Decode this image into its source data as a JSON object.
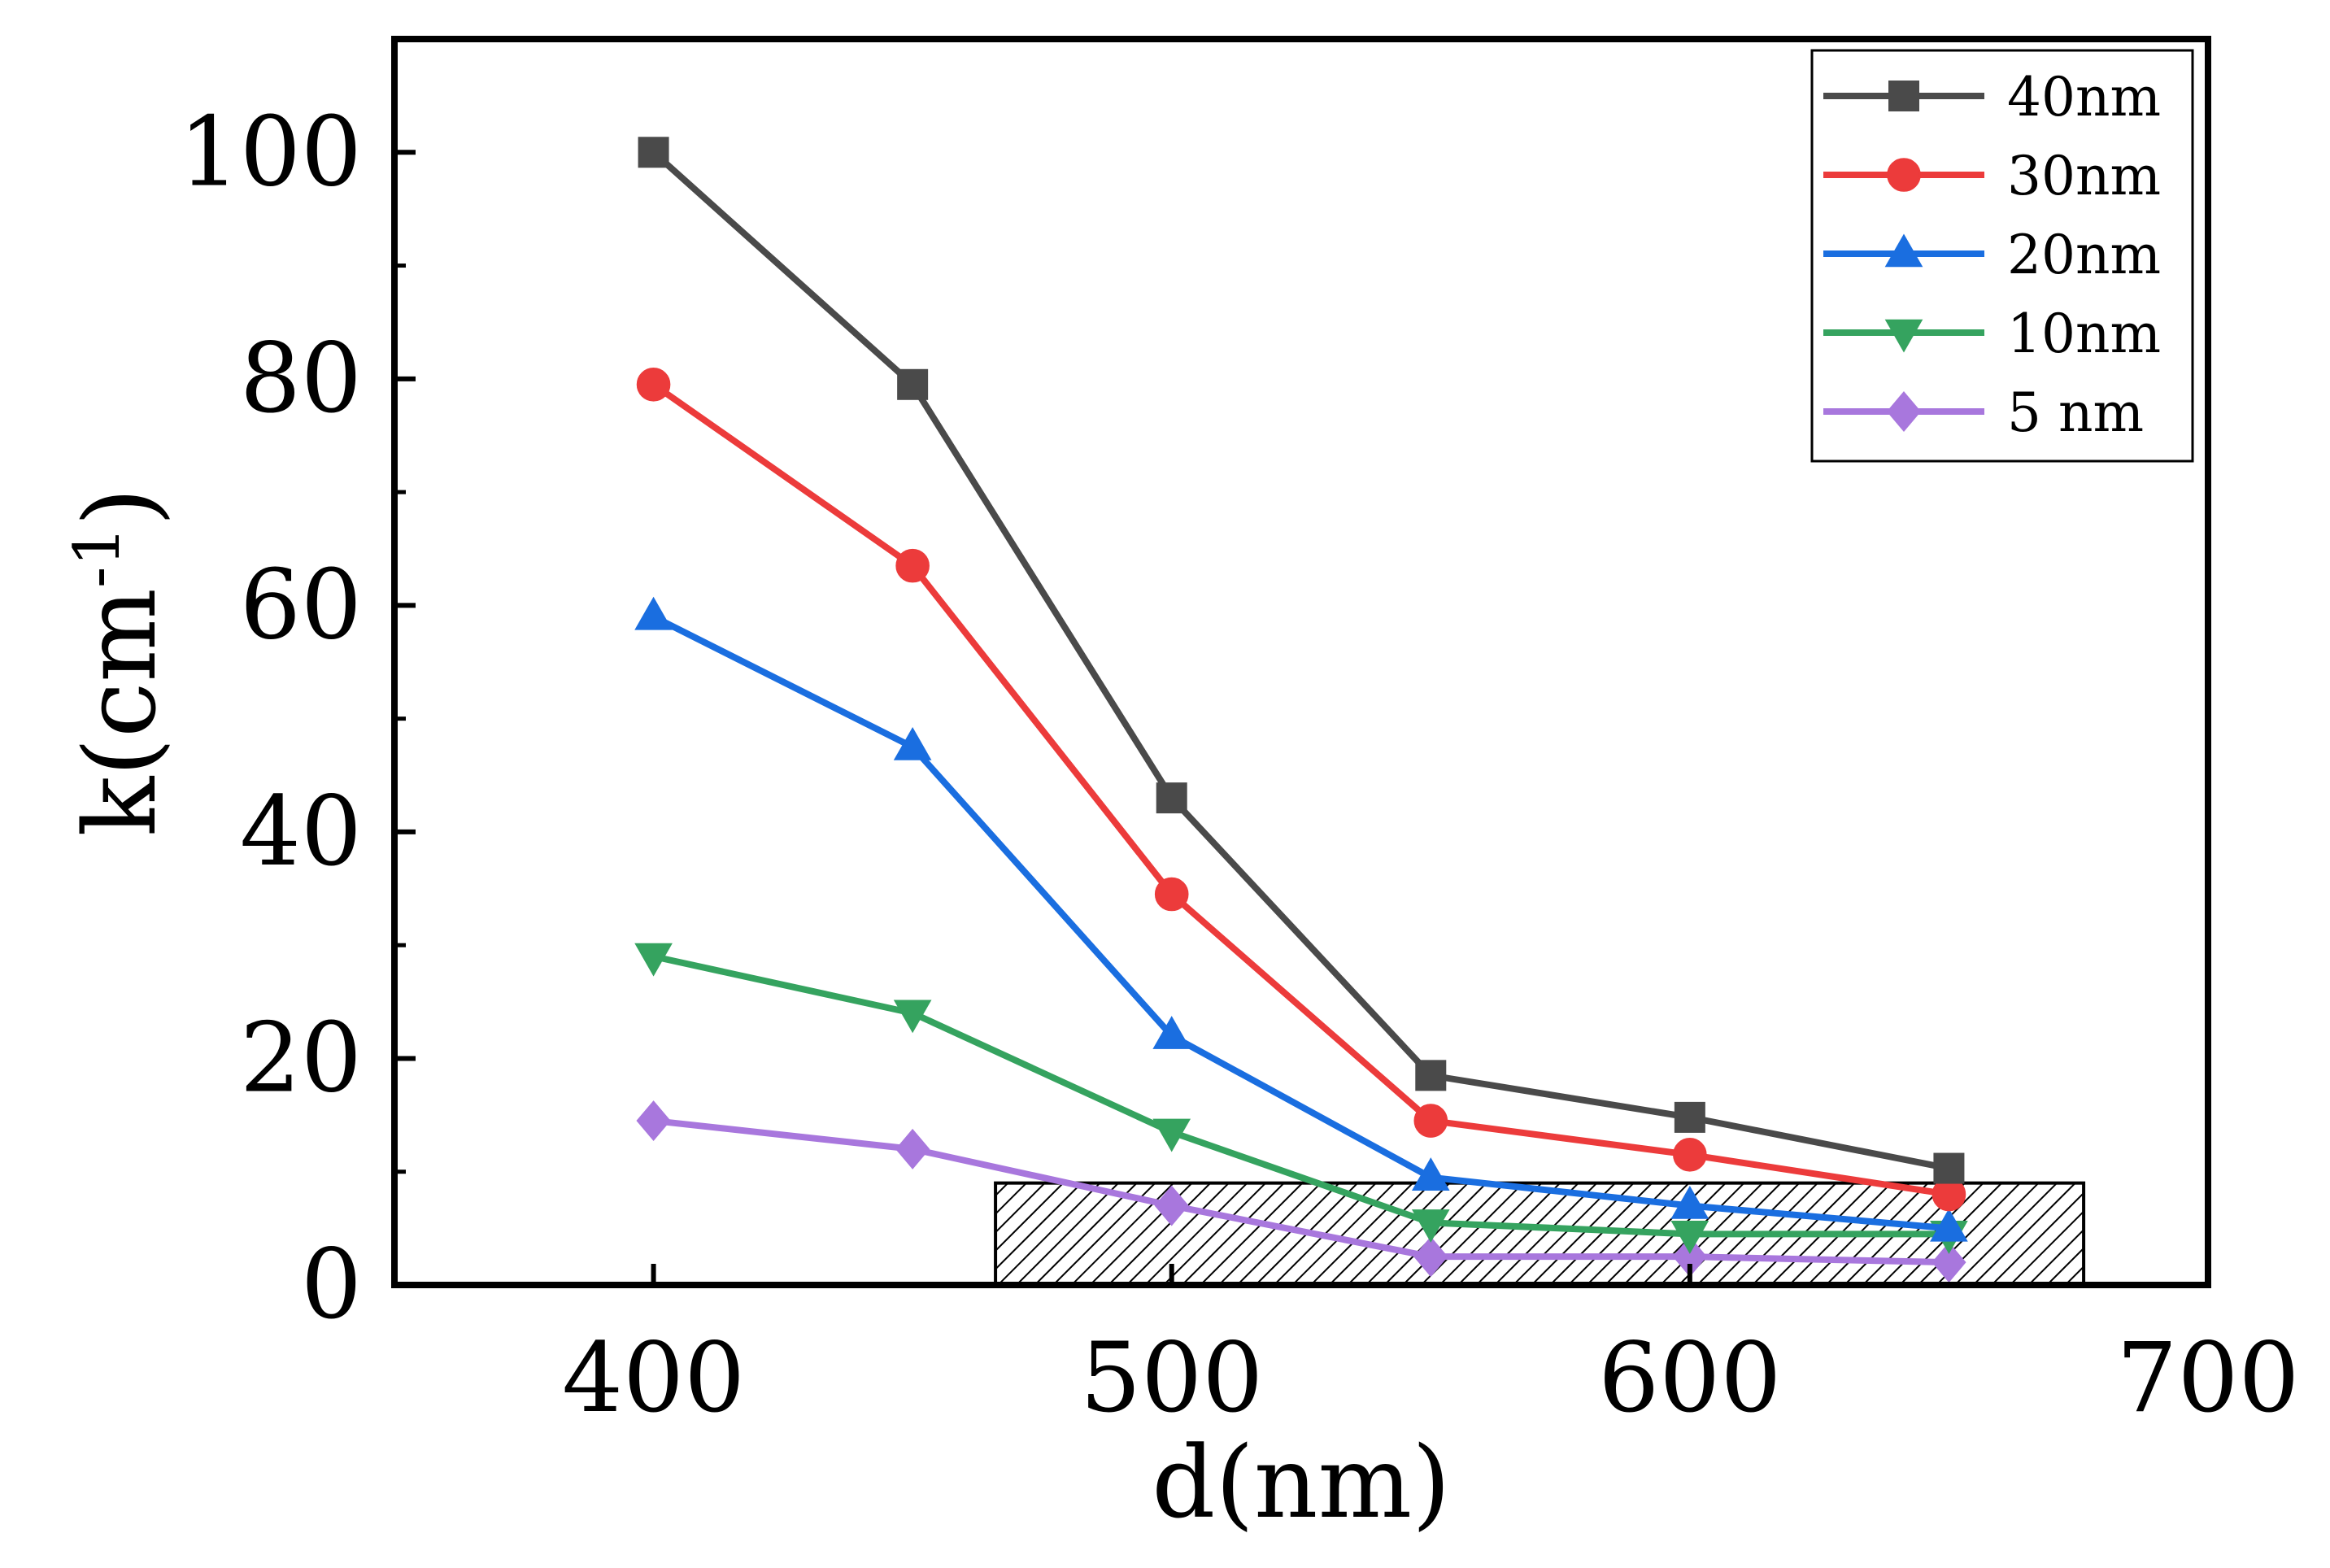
{
  "chart_data": {
    "type": "line",
    "title": "",
    "xlabel": "d(nm)",
    "ylabel_main": "k(cm",
    "ylabel_sup": "-1",
    "ylabel_close": ")",
    "xlim": [
      350,
      700
    ],
    "ylim": [
      0,
      110
    ],
    "xticks": [
      400,
      500,
      600,
      700
    ],
    "yticks": [
      0,
      20,
      40,
      60,
      80,
      100
    ],
    "x": [
      400,
      450,
      500,
      550,
      600,
      650
    ],
    "legend_position": "top-right",
    "series": [
      {
        "name": "40nm",
        "color": "#4a4a4a",
        "marker": "square",
        "values": [
          100,
          79.5,
          43,
          18.5,
          14.8,
          10.3
        ]
      },
      {
        "name": "30nm",
        "color": "#ec3b3b",
        "marker": "circle",
        "values": [
          79.5,
          63.5,
          34.5,
          14.5,
          11.5,
          8
        ]
      },
      {
        "name": "20nm",
        "color": "#1a6ee0",
        "marker": "triangle-up",
        "values": [
          59,
          47.5,
          22,
          9.5,
          7,
          5
        ]
      },
      {
        "name": "10nm",
        "color": "#35a35f",
        "marker": "triangle-down",
        "values": [
          29,
          24,
          13.5,
          5.5,
          4.5,
          4.5
        ]
      },
      {
        "name": "5 nm",
        "color": "#a877dd",
        "marker": "diamond",
        "values": [
          14.5,
          12,
          7,
          2.5,
          2.5,
          2
        ]
      }
    ],
    "shaded_region": {
      "x": [
        466,
        676
      ],
      "y": [
        0,
        9
      ],
      "pattern": "diagonal-hatch"
    }
  }
}
